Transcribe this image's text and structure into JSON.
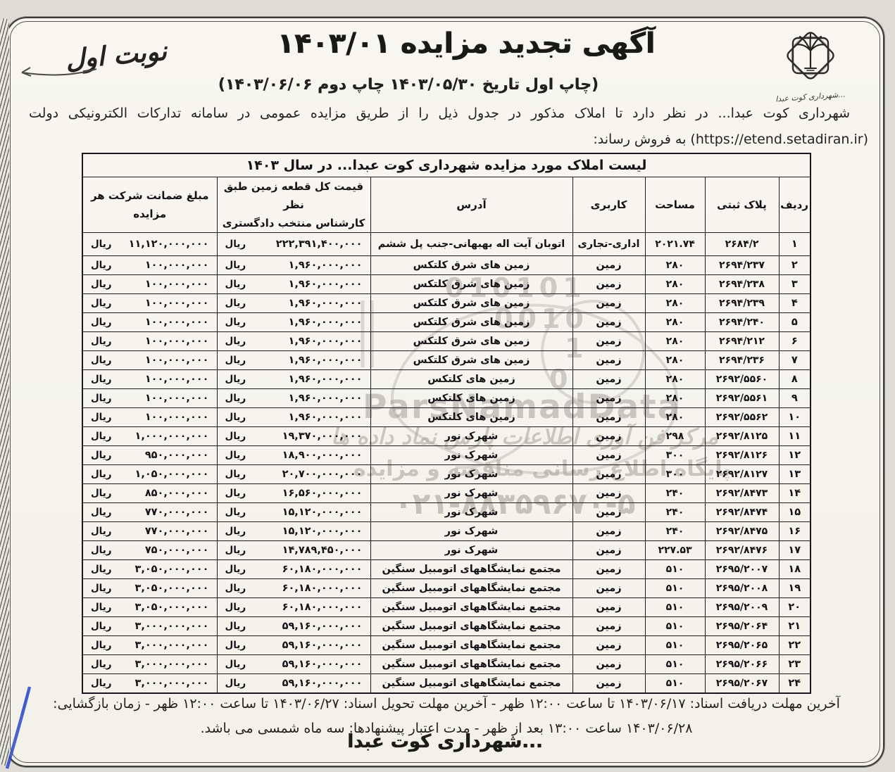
{
  "page": {
    "edition_note": "نوبت اول",
    "title": "آگهی تجدید مزایده ۱۴۰۳/۰۱",
    "subtitle": "(چاپ اول تاریخ ۱۴۰۳/۰۵/۳۰ چاپ دوم ۱۴۰۳/۰۶/۰۶)",
    "intro": "شهرداری کوت عبدا... در نظر دارد تا املاک مذکور در جدول ذیل را از طریق مزایده عمومی در سامانه تدارکات الکترونیکی دولت (https://etend.setadiran.ir) به فروش رساند:"
  },
  "logo": {
    "caption": "شهرداری کوت عبدا..."
  },
  "table": {
    "caption": "لیست املاک مورد مزایده شهرداری کوت عبدا... در سال ۱۴۰۳",
    "columns": [
      "ردیف",
      "پلاک ثبتی",
      "مساحت",
      "کاربری",
      "آدرس",
      "قیمت کل قطعه زمین طبق نظر\nکارشناس منتخب دادگستری",
      "مبلغ ضمانت شرکت هر\nمزایده"
    ],
    "currency": "ریال",
    "rows": [
      {
        "no": "۱",
        "plate": "۲۶۸۴/۲",
        "area": "۲۰۲۱.۷۴",
        "usage": "اداری-تجاری",
        "address": "اتوبان آیت اله بهبهانی-جنب پل ششم",
        "price": "۲۲۲,۳۹۱,۴۰۰,۰۰۰",
        "deposit": "۱۱,۱۲۰,۰۰۰,۰۰۰"
      },
      {
        "no": "۲",
        "plate": "۲۶۹۴/۲۳۷",
        "area": "۲۸۰",
        "usage": "زمین",
        "address": "زمین های شرق کلتکس",
        "price": "۱,۹۶۰,۰۰۰,۰۰۰",
        "deposit": "۱۰۰,۰۰۰,۰۰۰"
      },
      {
        "no": "۳",
        "plate": "۲۶۹۴/۲۳۸",
        "area": "۲۸۰",
        "usage": "زمین",
        "address": "زمین های شرق کلتکس",
        "price": "۱,۹۶۰,۰۰۰,۰۰۰",
        "deposit": "۱۰۰,۰۰۰,۰۰۰"
      },
      {
        "no": "۴",
        "plate": "۲۶۹۴/۲۳۹",
        "area": "۲۸۰",
        "usage": "زمین",
        "address": "زمین های شرق کلتکس",
        "price": "۱,۹۶۰,۰۰۰,۰۰۰",
        "deposit": "۱۰۰,۰۰۰,۰۰۰"
      },
      {
        "no": "۵",
        "plate": "۲۶۹۴/۲۴۰",
        "area": "۲۸۰",
        "usage": "زمین",
        "address": "زمین های شرق کلتکس",
        "price": "۱,۹۶۰,۰۰۰,۰۰۰",
        "deposit": "۱۰۰,۰۰۰,۰۰۰"
      },
      {
        "no": "۶",
        "plate": "۲۶۹۴/۲۱۲",
        "area": "۲۸۰",
        "usage": "زمین",
        "address": "زمین های شرق کلتکس",
        "price": "۱,۹۶۰,۰۰۰,۰۰۰",
        "deposit": "۱۰۰,۰۰۰,۰۰۰"
      },
      {
        "no": "۷",
        "plate": "۲۶۹۴/۲۳۶",
        "area": "۲۸۰",
        "usage": "زمین",
        "address": "زمین های شرق کلتکس",
        "price": "۱,۹۶۰,۰۰۰,۰۰۰",
        "deposit": "۱۰۰,۰۰۰,۰۰۰"
      },
      {
        "no": "۸",
        "plate": "۲۶۹۲/۵۵۶۰",
        "area": "۲۸۰",
        "usage": "زمین",
        "address": "زمین های کلتکس",
        "price": "۱,۹۶۰,۰۰۰,۰۰۰",
        "deposit": "۱۰۰,۰۰۰,۰۰۰"
      },
      {
        "no": "۹",
        "plate": "۲۶۹۲/۵۵۶۱",
        "area": "۲۸۰",
        "usage": "زمین",
        "address": "زمین های کلتکس",
        "price": "۱,۹۶۰,۰۰۰,۰۰۰",
        "deposit": "۱۰۰,۰۰۰,۰۰۰"
      },
      {
        "no": "۱۰",
        "plate": "۲۶۹۲/۵۵۶۲",
        "area": "۲۸۰",
        "usage": "زمین",
        "address": "زمین های کلتکس",
        "price": "۱,۹۶۰,۰۰۰,۰۰۰",
        "deposit": "۱۰۰,۰۰۰,۰۰۰"
      },
      {
        "no": "۱۱",
        "plate": "۲۶۹۲/۸۱۲۵",
        "area": "۲۹۸",
        "usage": "زمین",
        "address": "شهرک نور",
        "price": "۱۹,۳۷۰,۰۰۰,۰۰۰",
        "deposit": "۱,۰۰۰,۰۰۰,۰۰۰"
      },
      {
        "no": "۱۲",
        "plate": "۲۶۹۲/۸۱۲۶",
        "area": "۳۰۰",
        "usage": "زمین",
        "address": "شهرک نور",
        "price": "۱۸,۹۰۰,۰۰۰,۰۰۰",
        "deposit": "۹۵۰,۰۰۰,۰۰۰"
      },
      {
        "no": "۱۳",
        "plate": "۲۶۹۲/۸۱۲۷",
        "area": "۳۰۰",
        "usage": "زمین",
        "address": "شهرک نور",
        "price": "۲۰,۷۰۰,۰۰۰,۰۰۰",
        "deposit": "۱,۰۵۰,۰۰۰,۰۰۰"
      },
      {
        "no": "۱۴",
        "plate": "۲۶۹۲/۸۴۷۳",
        "area": "۲۴۰",
        "usage": "زمین",
        "address": "شهرک نور",
        "price": "۱۶,۵۶۰,۰۰۰,۰۰۰",
        "deposit": "۸۵۰,۰۰۰,۰۰۰"
      },
      {
        "no": "۱۵",
        "plate": "۲۶۹۲/۸۴۷۴",
        "area": "۲۴۰",
        "usage": "زمین",
        "address": "شهرک نور",
        "price": "۱۵,۱۲۰,۰۰۰,۰۰۰",
        "deposit": "۷۷۰,۰۰۰,۰۰۰"
      },
      {
        "no": "۱۶",
        "plate": "۲۶۹۲/۸۴۷۵",
        "area": "۲۴۰",
        "usage": "زمین",
        "address": "شهرک نور",
        "price": "۱۵,۱۲۰,۰۰۰,۰۰۰",
        "deposit": "۷۷۰,۰۰۰,۰۰۰"
      },
      {
        "no": "۱۷",
        "plate": "۲۶۹۲/۸۴۷۶",
        "area": "۲۲۷.۵۳",
        "usage": "زمین",
        "address": "شهرک نور",
        "price": "۱۴,۷۸۹,۴۵۰,۰۰۰",
        "deposit": "۷۵۰,۰۰۰,۰۰۰"
      },
      {
        "no": "۱۸",
        "plate": "۲۶۹۵/۲۰۰۷",
        "area": "۵۱۰",
        "usage": "زمین",
        "address": "مجتمع نمایشگاههای اتومبیل سنگین",
        "price": "۶۰,۱۸۰,۰۰۰,۰۰۰",
        "deposit": "۳,۰۵۰,۰۰۰,۰۰۰"
      },
      {
        "no": "۱۹",
        "plate": "۲۶۹۵/۲۰۰۸",
        "area": "۵۱۰",
        "usage": "زمین",
        "address": "مجتمع نمایشگاههای اتومبیل سنگین",
        "price": "۶۰,۱۸۰,۰۰۰,۰۰۰",
        "deposit": "۳,۰۵۰,۰۰۰,۰۰۰"
      },
      {
        "no": "۲۰",
        "plate": "۲۶۹۵/۲۰۰۹",
        "area": "۵۱۰",
        "usage": "زمین",
        "address": "مجتمع نمایشگاههای اتومبیل سنگین",
        "price": "۶۰,۱۸۰,۰۰۰,۰۰۰",
        "deposit": "۳,۰۵۰,۰۰۰,۰۰۰"
      },
      {
        "no": "۲۱",
        "plate": "۲۶۹۵/۲۰۶۴",
        "area": "۵۱۰",
        "usage": "زمین",
        "address": "مجتمع نمایشگاههای اتومبیل سنگین",
        "price": "۵۹,۱۶۰,۰۰۰,۰۰۰",
        "deposit": "۳,۰۰۰,۰۰۰,۰۰۰"
      },
      {
        "no": "۲۲",
        "plate": "۲۶۹۵/۲۰۶۵",
        "area": "۵۱۰",
        "usage": "زمین",
        "address": "مجتمع نمایشگاههای اتومبیل سنگین",
        "price": "۵۹,۱۶۰,۰۰۰,۰۰۰",
        "deposit": "۳,۰۰۰,۰۰۰,۰۰۰"
      },
      {
        "no": "۲۳",
        "plate": "۲۶۹۵/۲۰۶۶",
        "area": "۵۱۰",
        "usage": "زمین",
        "address": "مجتمع نمایشگاههای اتومبیل سنگین",
        "price": "۵۹,۱۶۰,۰۰۰,۰۰۰",
        "deposit": "۳,۰۰۰,۰۰۰,۰۰۰"
      },
      {
        "no": "۲۴",
        "plate": "۲۶۹۵/۲۰۶۷",
        "area": "۵۱۰",
        "usage": "زمین",
        "address": "مجتمع نمایشگاههای اتومبیل سنگین",
        "price": "۵۹,۱۶۰,۰۰۰,۰۰۰",
        "deposit": "۳,۰۰۰,۰۰۰,۰۰۰"
      }
    ]
  },
  "footer": {
    "line1": "آخرین مهلت دریافت اسناد: ۱۴۰۳/۰۶/۱۷ تا ساعت ۱۲:۰۰ ظهر - آخرین مهلت تحویل اسناد: ۱۴۰۳/۰۶/۲۷ تا ساعت ۱۲:۰۰ ظهر - زمان بازگشایی: ۱۴۰۳/۰۶/۲۸ ساعت ۱۳:۰۰ بعد از ظهر - مدت اعتبار پیشنهادها: سه ماه شمسی می باشد.",
    "signature": "شهرداری کوت عبدا..."
  },
  "watermark": {
    "brand": "ParsNamadData",
    "line_fa_1": "مرکز فن آوری اطلاعات پارس نماد داده ها",
    "line_fa_2": "پایگاه اطلاع رسانی مناقصه و مزایده",
    "phone": "۰۲۱-۸۸۳۵۹۶۷۰-۵",
    "digits": [
      "010101",
      "0010",
      "1",
      "0"
    ]
  },
  "colors": {
    "paper": "#f7f6f1",
    "ink": "#1c1c1f",
    "watermark_gray": "#c7c6c1",
    "pen_blue": "#2c49c9"
  }
}
